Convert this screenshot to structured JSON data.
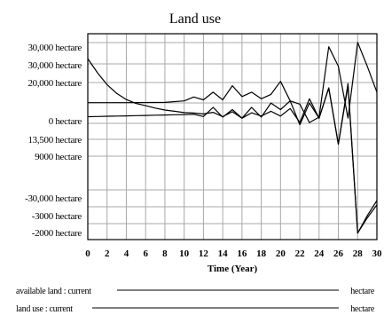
{
  "chart_data": {
    "type": "line",
    "title": "Land use",
    "xlabel": "Time (Year)",
    "xlim": [
      0,
      30
    ],
    "x_ticks": [
      "0",
      "2",
      "4",
      "6",
      "8",
      "10",
      "12",
      "14",
      "16",
      "18",
      "20",
      "22",
      "24",
      "26",
      "28",
      "30"
    ],
    "y_tick_labels": [
      "30,000  hectare",
      "30,000  hectare",
      "20,000  hectare",
      "0  hectare",
      "13,500  hectare",
      "9000  hectare",
      "-30,000  hectare",
      "-3000  hectare",
      "-2000  hectare"
    ],
    "grid": true,
    "legend_position": "bottom",
    "series": [
      {
        "name": "available land : current",
        "unit": "hectare",
        "color": "#000000",
        "x": [
          0,
          1,
          2,
          3,
          4,
          5,
          6,
          7,
          8,
          9,
          10,
          11,
          12,
          13,
          14,
          15,
          16,
          17,
          18,
          19,
          20,
          21,
          22,
          23,
          24,
          25,
          26,
          27,
          28,
          29,
          30
        ],
        "y": [
          23500,
          17000,
          11500,
          7500,
          4600,
          2800,
          1800,
          700,
          -200,
          -800,
          -1400,
          -1600,
          -2000,
          -1300,
          -3300,
          -1000,
          -4000,
          -1500,
          -3000,
          -800,
          -3000,
          500,
          -6000,
          5000,
          -4000,
          10000,
          -16000,
          11000,
          -57000,
          -50000,
          -44000
        ]
      },
      {
        "name": "land use : current",
        "unit": "hectare",
        "color": "#000000",
        "x": [
          0,
          1,
          2,
          3,
          4,
          5,
          6,
          7,
          8,
          9,
          10,
          11,
          12,
          13,
          14,
          15,
          16,
          17,
          18,
          19,
          20,
          21,
          22,
          23,
          24,
          25,
          26,
          27,
          28,
          29,
          30
        ],
        "y": [
          -3300,
          -3200,
          -3100,
          -3000,
          -2900,
          -2800,
          -2700,
          -2600,
          -2500,
          -2400,
          -2300,
          -2200,
          -3200,
          1000,
          -3500,
          0,
          -4000,
          1000,
          -3500,
          3000,
          0,
          4000,
          -7000,
          3000,
          -4000,
          10000,
          -16000,
          12000,
          -57000,
          -49000,
          -42000
        ]
      },
      {
        "name": "",
        "color": "#000000",
        "x": [
          0,
          4,
          8,
          10,
          11,
          12,
          13,
          14,
          15,
          16,
          17,
          18,
          19,
          20,
          21,
          22,
          23,
          24,
          25,
          26,
          27,
          28,
          29,
          30
        ],
        "y": [
          3200,
          3200,
          3300,
          4000,
          5800,
          4500,
          8000,
          4500,
          11000,
          6000,
          8000,
          5000,
          7000,
          13000,
          4000,
          2500,
          -6000,
          -3500,
          29000,
          20000,
          -4000,
          31000,
          20000,
          8000
        ]
      }
    ],
    "legend": [
      {
        "label": "available land : current",
        "unit": "hectare"
      },
      {
        "label": "land use : current",
        "unit": "hectare"
      }
    ]
  }
}
